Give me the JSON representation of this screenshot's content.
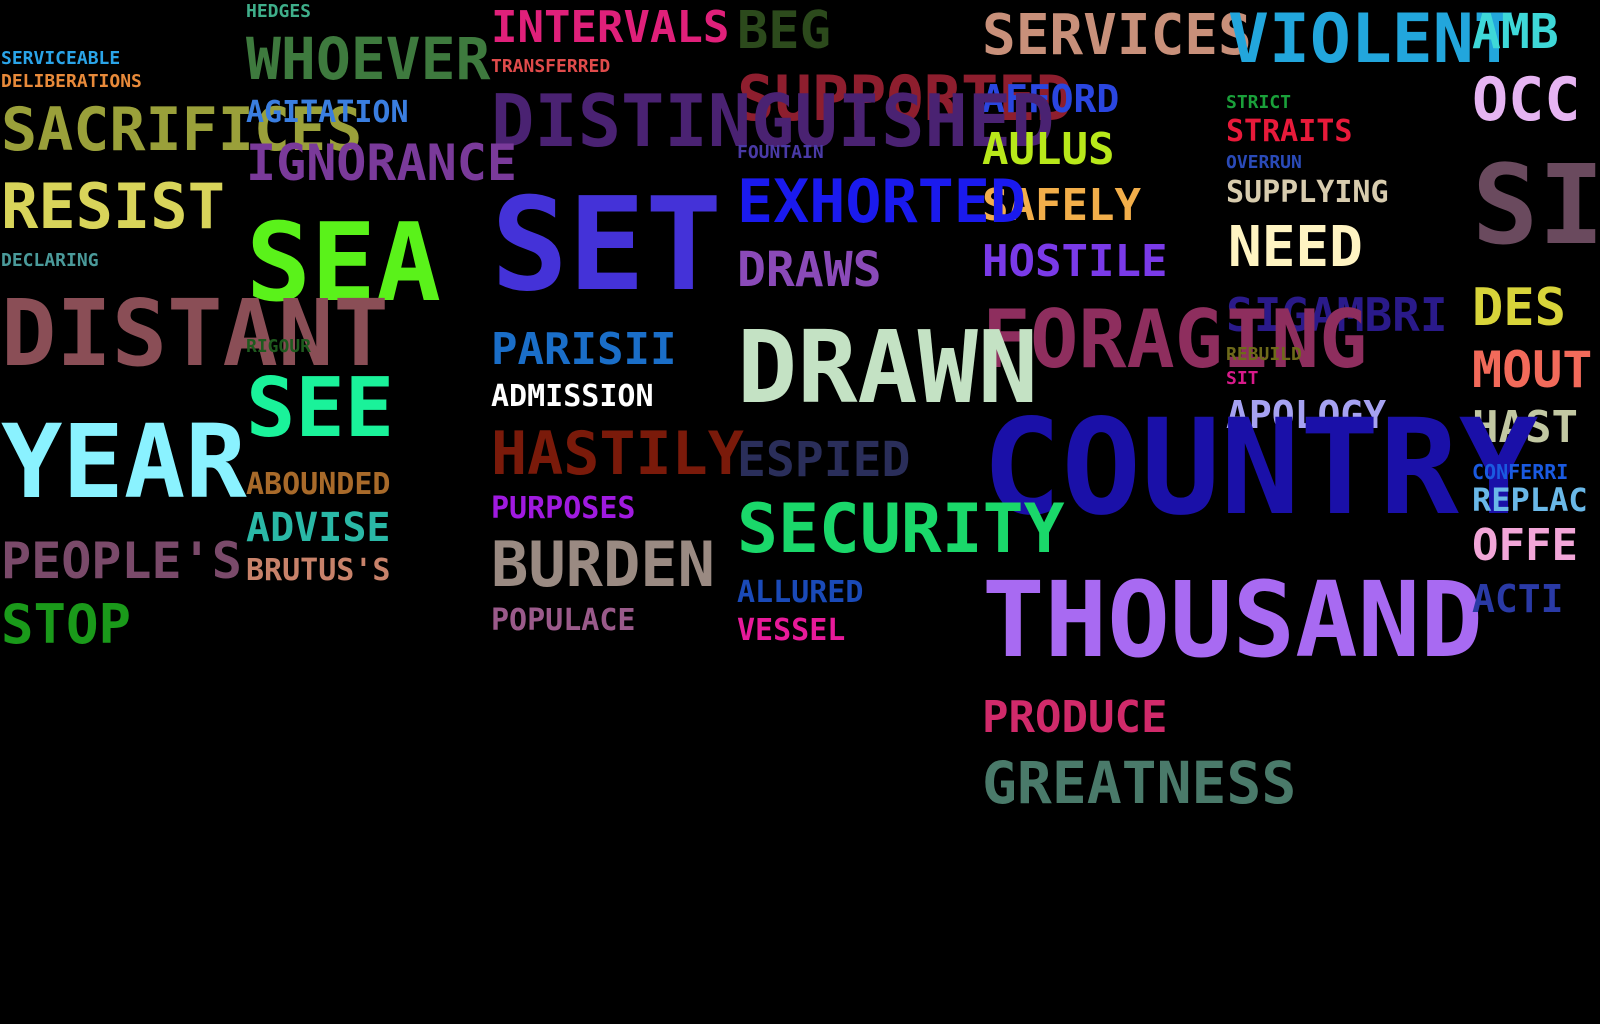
{
  "words": [
    {
      "text": "HEDGES",
      "color": "#3fae8a"
    },
    {
      "text": "INTERVALS",
      "color": "#e0207a"
    },
    {
      "text": "BEG",
      "color": "#2c4a1c"
    },
    {
      "text": "SERVICES",
      "color": "#c8907a"
    },
    {
      "text": "VIOLENT",
      "color": "#22a6dc"
    },
    {
      "text": "AMB",
      "color": "#3ed8d8"
    },
    {
      "text": "SERVICEABLE",
      "color": "#2aa4e8"
    },
    {
      "text": "DELIBERATIONS",
      "color": "#e88a3a"
    },
    {
      "text": "WHOEVER",
      "color": "#3e7a3e"
    },
    {
      "text": "TRANSFERRED",
      "color": "#e04b4b"
    },
    {
      "text": "SUPPORTED",
      "color": "#8e1e2e"
    },
    {
      "text": "AFFORD",
      "color": "#2a46e0"
    },
    {
      "text": "OCC",
      "color": "#e6b4f2"
    },
    {
      "text": "SACRIFICES",
      "color": "#9aa03a"
    },
    {
      "text": "AGITATION",
      "color": "#3a7ee0"
    },
    {
      "text": "DISTINGUISHED",
      "color": "#4a2272"
    },
    {
      "text": "STRICT",
      "color": "#1aa03a"
    },
    {
      "text": "STRAITS",
      "color": "#e81a3a"
    },
    {
      "text": "AULUS",
      "color": "#b8e81a"
    },
    {
      "text": "IGNORANCE",
      "color": "#7a3a9a"
    },
    {
      "text": "FOUNTAIN",
      "color": "#4a3aa6"
    },
    {
      "text": "OVERRUN",
      "color": "#2a4ab8"
    },
    {
      "text": "SUPPLYING",
      "color": "#d8ccae"
    },
    {
      "text": "SI",
      "color": "#6a4a5e"
    },
    {
      "text": "RESIST",
      "color": "#d8d45a"
    },
    {
      "text": "SAFELY",
      "color": "#f2ae4a"
    },
    {
      "text": "EXHORTED",
      "color": "#1a1aee"
    },
    {
      "text": "SEA",
      "color": "#5af21a"
    },
    {
      "text": "SET",
      "color": "#4432d8"
    },
    {
      "text": "NEED",
      "color": "#fff4c2"
    },
    {
      "text": "DECLARING",
      "color": "#4a9a9a"
    },
    {
      "text": "DRAWS",
      "color": "#8a4ab8"
    },
    {
      "text": "HOSTILE",
      "color": "#7a3ae8"
    },
    {
      "text": "DES",
      "color": "#d8d43a"
    },
    {
      "text": "DISTANT",
      "color": "#8a4e56"
    },
    {
      "text": "SIGAMBRI",
      "color": "#2a1a8a"
    },
    {
      "text": "FORAGING",
      "color": "#8e2e5e"
    },
    {
      "text": "PARISII",
      "color": "#1a6ec8"
    },
    {
      "text": "RIGOUR",
      "color": "#1e5a1e"
    },
    {
      "text": "DRAWN",
      "color": "#c4e2c4"
    },
    {
      "text": "REBUILD",
      "color": "#6e6a1a"
    },
    {
      "text": "SIT",
      "color": "#d81a8a"
    },
    {
      "text": "MOUT",
      "color": "#f26a5a"
    },
    {
      "text": "ADMISSION",
      "color": "#ffffff"
    },
    {
      "text": "SEE",
      "color": "#1af29a"
    },
    {
      "text": "APOLOGY",
      "color": "#a6a2f2"
    },
    {
      "text": "HAST",
      "color": "#c2c8a2"
    },
    {
      "text": "HASTILY",
      "color": "#7a1a0a"
    },
    {
      "text": "YEAR",
      "color": "#8af2ff"
    },
    {
      "text": "ESPIED",
      "color": "#2a2e5a"
    },
    {
      "text": "COUNTRY",
      "color": "#1a10a8"
    },
    {
      "text": "CONFERRI",
      "color": "#1a5ae0"
    },
    {
      "text": "ABOUNDED",
      "color": "#a86a2a"
    },
    {
      "text": "REPLAC",
      "color": "#6ab8e8"
    },
    {
      "text": "PURPOSES",
      "color": "#a01ae0"
    },
    {
      "text": "ADVISE",
      "color": "#2ab8a6"
    },
    {
      "text": "SECURITY",
      "color": "#1ad86a"
    },
    {
      "text": "OFFE",
      "color": "#f2a6d8"
    },
    {
      "text": "PEOPLE'S",
      "color": "#7a4a6a"
    },
    {
      "text": "BRUTUS'S",
      "color": "#c8826a"
    },
    {
      "text": "BURDEN",
      "color": "#9a8a82"
    },
    {
      "text": "THOUSAND",
      "color": "#a86af2"
    },
    {
      "text": "ALLURED",
      "color": "#1a4ab8"
    },
    {
      "text": "ACTI",
      "color": "#2a3aa6"
    },
    {
      "text": "STOP",
      "color": "#1a9a1a"
    },
    {
      "text": "POPULACE",
      "color": "#9a5a8a"
    },
    {
      "text": "VESSEL",
      "color": "#e81a9a"
    },
    {
      "text": "PRODUCE",
      "color": "#d02a6a"
    },
    {
      "text": "GREATNESS",
      "color": "#4a7a6a"
    }
  ]
}
